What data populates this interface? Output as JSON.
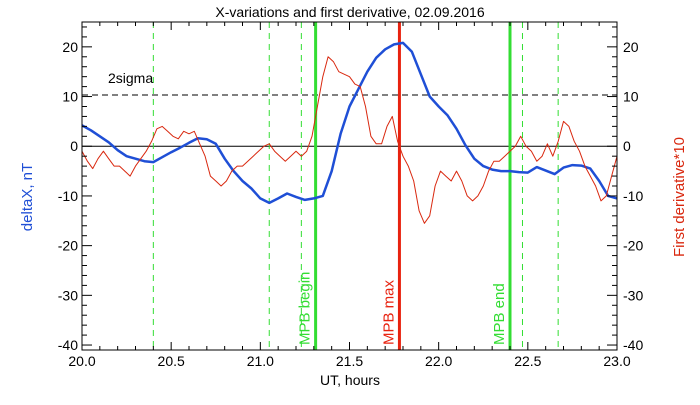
{
  "chart_data": {
    "type": "line",
    "title": "X-variations and first derivative, 02.09.2016",
    "xlabel": "UT, hours",
    "ylabel_left": "deltaX, nT",
    "ylabel_right": "First derivative*10",
    "xlim": [
      20.0,
      23.0
    ],
    "ylim": [
      -41,
      25
    ],
    "x_ticks": [
      "20.0",
      "20.5",
      "21.0",
      "21.5",
      "22.0",
      "22.5",
      "23.0"
    ],
    "y_ticks": [
      "20",
      "10",
      "0",
      "-10",
      "-20",
      "-30",
      "-40"
    ],
    "colors": {
      "deltaX": "#1f4fd6",
      "derivative": "#d9280f",
      "mpb": "#33dd33",
      "mpb_max": "#e8220f",
      "reference": "#000000"
    },
    "threshold": {
      "label": "2sigma",
      "y": 10.3
    },
    "zero_line": 0,
    "vertical_lines": [
      {
        "x": 21.31,
        "label": "MPB begin",
        "style": "solid",
        "color": "#33dd33"
      },
      {
        "x": 21.78,
        "label": "MPB max",
        "style": "solid",
        "color": "#e8220f"
      },
      {
        "x": 22.4,
        "label": "MPB end",
        "style": "solid",
        "color": "#33dd33"
      },
      {
        "x": 20.4,
        "style": "dashed",
        "color": "#33dd33"
      },
      {
        "x": 21.05,
        "style": "dashed",
        "color": "#33dd33"
      },
      {
        "x": 21.23,
        "style": "dashed",
        "color": "#33dd33"
      },
      {
        "x": 22.47,
        "style": "dashed",
        "color": "#33dd33"
      },
      {
        "x": 22.67,
        "style": "dashed",
        "color": "#33dd33"
      }
    ],
    "series": [
      {
        "key": "deltaX",
        "x": [
          20.0,
          20.05,
          20.1,
          20.15,
          20.2,
          20.25,
          20.3,
          20.35,
          20.4,
          20.45,
          20.5,
          20.55,
          20.6,
          20.65,
          20.7,
          20.75,
          20.8,
          20.85,
          20.9,
          20.95,
          21.0,
          21.05,
          21.1,
          21.15,
          21.2,
          21.25,
          21.3,
          21.35,
          21.4,
          21.45,
          21.5,
          21.55,
          21.6,
          21.65,
          21.7,
          21.75,
          21.8,
          21.85,
          21.9,
          21.95,
          22.0,
          22.05,
          22.1,
          22.15,
          22.2,
          22.25,
          22.3,
          22.35,
          22.4,
          22.45,
          22.5,
          22.55,
          22.6,
          22.65,
          22.7,
          22.75,
          22.8,
          22.85,
          22.9,
          22.95,
          23.0
        ],
        "y": [
          4.2,
          3.2,
          2.0,
          0.8,
          -0.8,
          -2.0,
          -2.5,
          -3.0,
          -3.2,
          -2.2,
          -1.2,
          -0.3,
          0.7,
          1.6,
          1.4,
          0.5,
          -2.5,
          -5,
          -7,
          -8.5,
          -10.5,
          -11.4,
          -10.5,
          -9.5,
          -10.2,
          -10.8,
          -10.5,
          -10.0,
          -5.0,
          2.5,
          8.0,
          11.5,
          15.0,
          17.8,
          19.5,
          20.5,
          20.8,
          19.0,
          14.5,
          10.0,
          8.0,
          6.2,
          3.5,
          0.2,
          -2.5,
          -4.0,
          -4.7,
          -5.0,
          -5.0,
          -5.2,
          -5.3,
          -4.2,
          -4.9,
          -5.6,
          -4.3,
          -3.8,
          -3.9,
          -4.5,
          -7.0,
          -10.0,
          -10.5
        ]
      },
      {
        "key": "derivative",
        "x": [
          20.0,
          20.03,
          20.06,
          20.09,
          20.12,
          20.15,
          20.18,
          20.21,
          20.24,
          20.27,
          20.3,
          20.33,
          20.36,
          20.39,
          20.42,
          20.45,
          20.48,
          20.51,
          20.54,
          20.57,
          20.6,
          20.63,
          20.66,
          20.69,
          20.72,
          20.75,
          20.78,
          20.81,
          20.84,
          20.87,
          20.9,
          20.93,
          20.96,
          20.99,
          21.02,
          21.05,
          21.08,
          21.11,
          21.14,
          21.17,
          21.2,
          21.23,
          21.26,
          21.29,
          21.32,
          21.35,
          21.38,
          21.41,
          21.44,
          21.47,
          21.5,
          21.53,
          21.56,
          21.59,
          21.62,
          21.65,
          21.68,
          21.71,
          21.74,
          21.77,
          21.8,
          21.83,
          21.86,
          21.89,
          21.92,
          21.95,
          21.98,
          22.01,
          22.04,
          22.07,
          22.1,
          22.13,
          22.16,
          22.19,
          22.22,
          22.25,
          22.28,
          22.31,
          22.34,
          22.37,
          22.4,
          22.43,
          22.46,
          22.49,
          22.52,
          22.55,
          22.58,
          22.61,
          22.64,
          22.67,
          22.7,
          22.73,
          22.76,
          22.79,
          22.82,
          22.85,
          22.88,
          22.91,
          22.94,
          22.97,
          23.0
        ],
        "y": [
          -1.0,
          -3.0,
          -4.5,
          -2.5,
          -1.0,
          -2.5,
          -4.0,
          -4.0,
          -5.0,
          -6.0,
          -4.0,
          -2.5,
          -1.0,
          1.0,
          3.5,
          4.0,
          3.0,
          2.0,
          1.5,
          3.0,
          2.5,
          3.0,
          0.5,
          -2.0,
          -6.0,
          -7.0,
          -8.0,
          -7.0,
          -5.0,
          -4.0,
          -4.0,
          -3.0,
          -2.0,
          -1.0,
          0.0,
          0.5,
          -1.0,
          -2.0,
          -3.0,
          -2.0,
          -1.0,
          -2.0,
          -1.0,
          2.0,
          8.0,
          14.0,
          18.0,
          17.0,
          15.0,
          14.5,
          14.0,
          12.5,
          12.0,
          8.0,
          2.0,
          0.5,
          0.5,
          4.0,
          6.0,
          1.0,
          -2.0,
          -4.0,
          -7.0,
          -13.0,
          -15.5,
          -14.0,
          -8.0,
          -5.0,
          -6.0,
          -7.0,
          -5.0,
          -7.0,
          -10.0,
          -11.0,
          -10.0,
          -8.0,
          -5.0,
          -3.0,
          -3.0,
          -2.0,
          -1.0,
          0.0,
          2.0,
          0.0,
          -1.0,
          -3.0,
          -2.0,
          0.5,
          -2.0,
          1.0,
          5.0,
          4.0,
          1.0,
          -1.0,
          -4.0,
          -6.0,
          -8.0,
          -11.0,
          -10.0,
          -6.0,
          -2.0
        ]
      }
    ]
  }
}
